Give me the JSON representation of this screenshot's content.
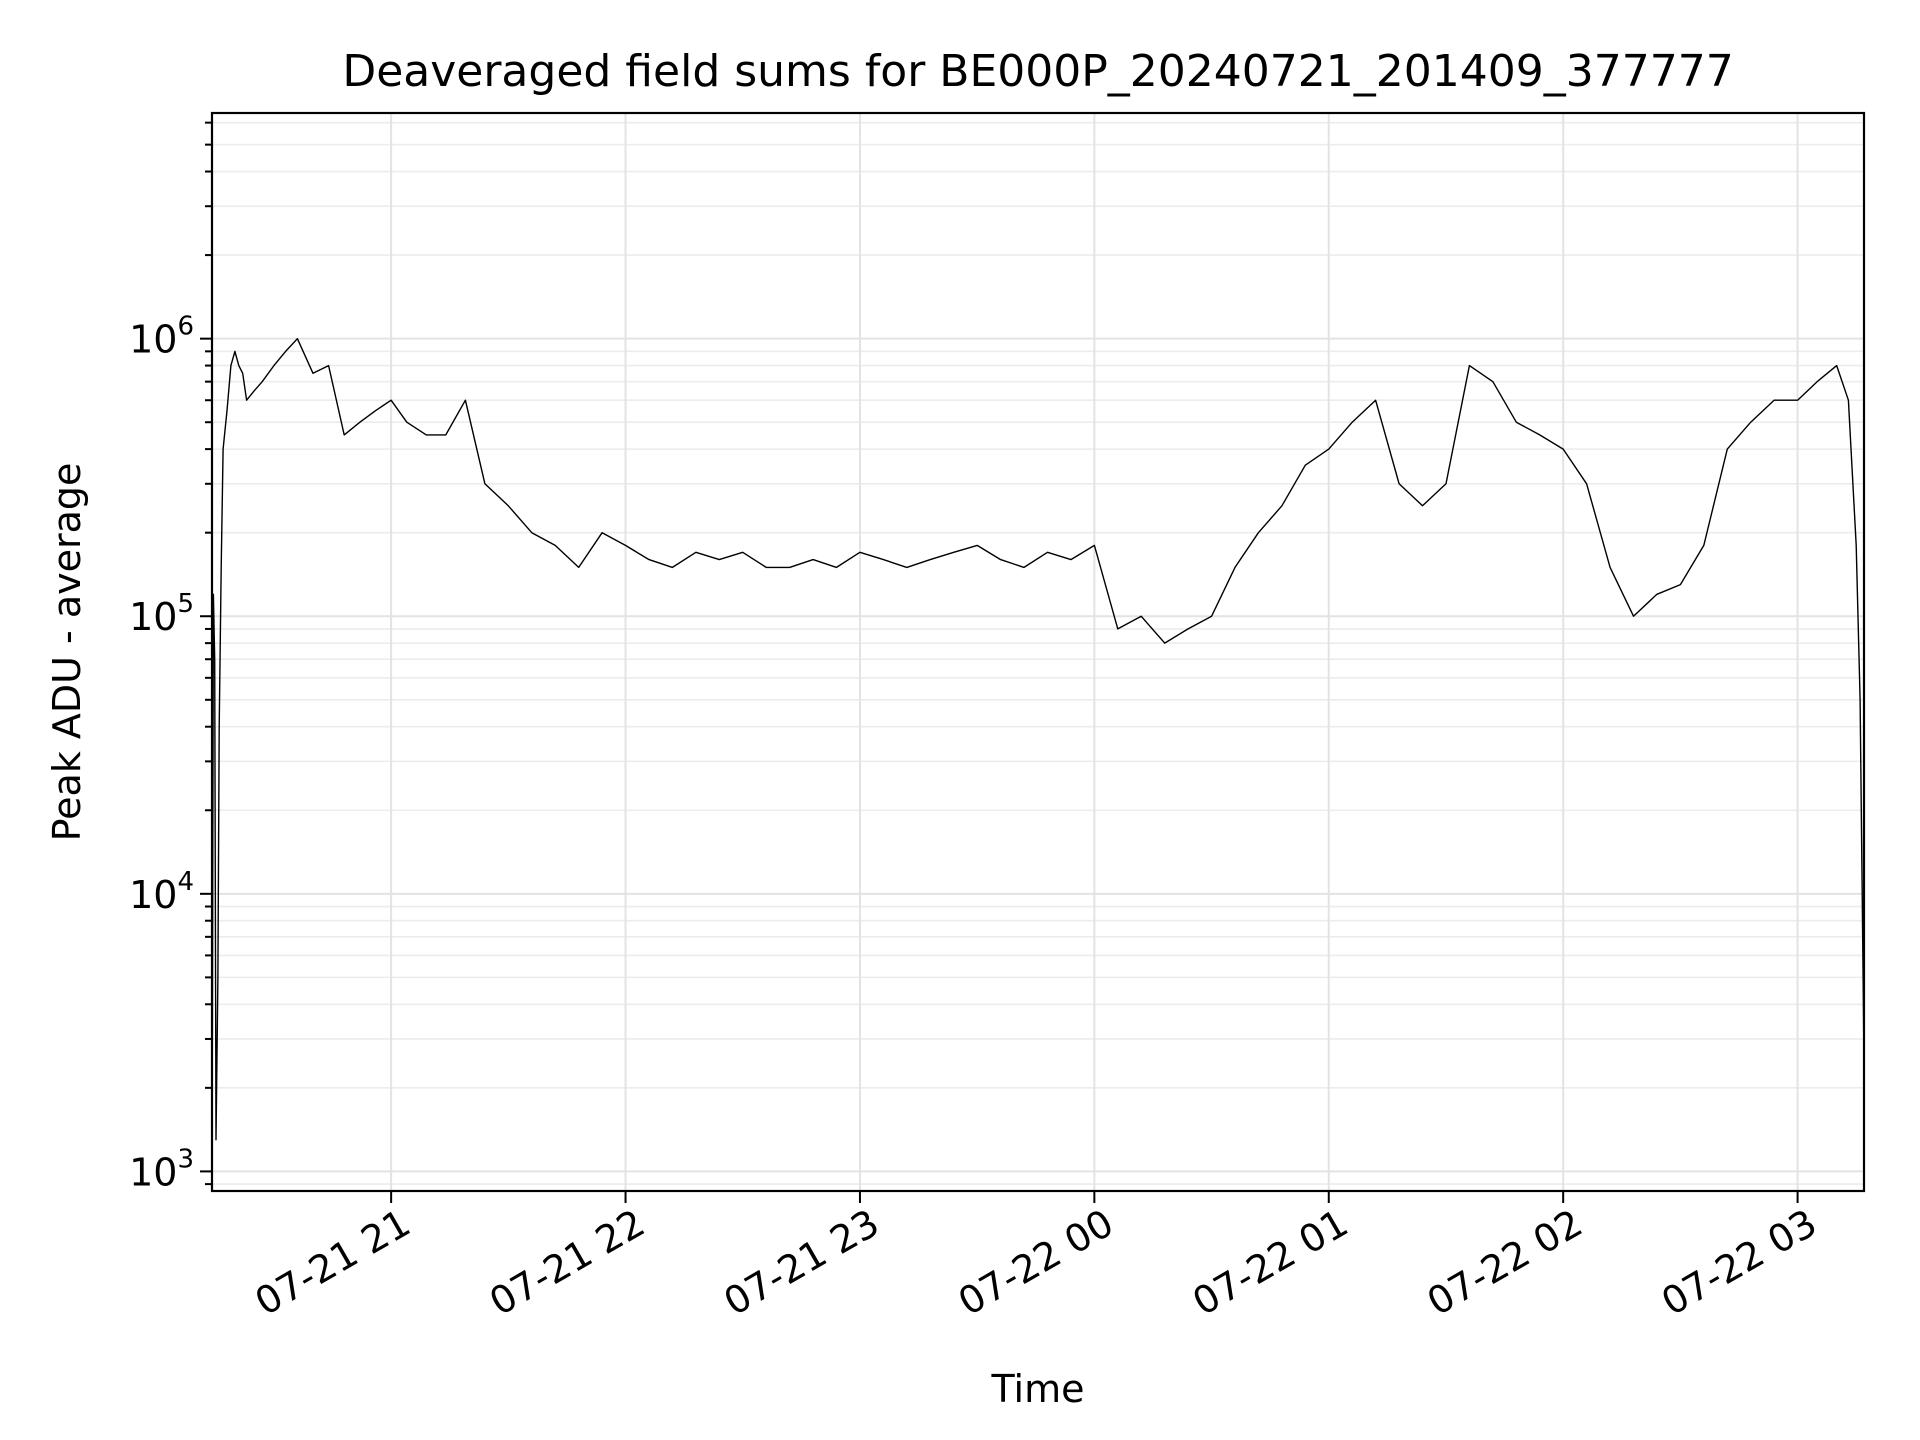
{
  "chart_data": {
    "type": "line",
    "title": "Deaveraged field sums for BE000P_20240721_201409_377777",
    "xlabel": "Time",
    "ylabel": "Peak ADU - average",
    "xscale": "time",
    "yscale": "log",
    "xlim": [
      "2024-07-21T20:14:09",
      "2024-07-22T03:17:00"
    ],
    "ylim": [
      850,
      6500000
    ],
    "grid": true,
    "legend": "none",
    "line_color": "#000000",
    "x_ticks": [
      {
        "value": "2024-07-21T21:00:00",
        "label": "07-21 21"
      },
      {
        "value": "2024-07-21T22:00:00",
        "label": "07-21 22"
      },
      {
        "value": "2024-07-21T23:00:00",
        "label": "07-21 23"
      },
      {
        "value": "2024-07-22T00:00:00",
        "label": "07-22 00"
      },
      {
        "value": "2024-07-22T01:00:00",
        "label": "07-22 01"
      },
      {
        "value": "2024-07-22T02:00:00",
        "label": "07-22 02"
      },
      {
        "value": "2024-07-22T03:00:00",
        "label": "07-22 03"
      }
    ],
    "y_ticks": [
      {
        "value": 1000,
        "base": "10",
        "exp": "3"
      },
      {
        "value": 10000,
        "base": "10",
        "exp": "4"
      },
      {
        "value": 100000,
        "base": "10",
        "exp": "5"
      },
      {
        "value": 1000000,
        "base": "10",
        "exp": "6"
      }
    ],
    "series": [
      {
        "x": [
          "2024-07-21T20:14:09",
          "2024-07-21T20:14:30",
          "2024-07-21T20:14:50",
          "2024-07-21T20:15:10",
          "2024-07-21T20:15:40",
          "2024-07-21T20:16:00",
          "2024-07-21T20:16:30",
          "2024-07-21T20:17:00",
          "2024-07-21T20:18:00",
          "2024-07-21T20:19:00",
          "2024-07-21T20:20:00",
          "2024-07-21T20:21:00",
          "2024-07-21T20:22:00",
          "2024-07-21T20:23:00",
          "2024-07-21T20:25:00",
          "2024-07-21T20:27:00",
          "2024-07-21T20:30:00",
          "2024-07-21T20:33:00",
          "2024-07-21T20:36:00",
          "2024-07-21T20:40:00",
          "2024-07-21T20:44:00",
          "2024-07-21T20:48:00",
          "2024-07-21T20:52:00",
          "2024-07-21T20:56:00",
          "2024-07-21T21:00:00",
          "2024-07-21T21:04:00",
          "2024-07-21T21:09:00",
          "2024-07-21T21:14:00",
          "2024-07-21T21:19:00",
          "2024-07-21T21:24:00",
          "2024-07-21T21:30:00",
          "2024-07-21T21:36:00",
          "2024-07-21T21:42:00",
          "2024-07-21T21:48:00",
          "2024-07-21T21:54:00",
          "2024-07-21T22:00:00",
          "2024-07-21T22:06:00",
          "2024-07-21T22:12:00",
          "2024-07-21T22:18:00",
          "2024-07-21T22:24:00",
          "2024-07-21T22:30:00",
          "2024-07-21T22:36:00",
          "2024-07-21T22:42:00",
          "2024-07-21T22:48:00",
          "2024-07-21T22:54:00",
          "2024-07-21T23:00:00",
          "2024-07-21T23:06:00",
          "2024-07-21T23:12:00",
          "2024-07-21T23:18:00",
          "2024-07-21T23:24:00",
          "2024-07-21T23:30:00",
          "2024-07-21T23:36:00",
          "2024-07-21T23:42:00",
          "2024-07-21T23:48:00",
          "2024-07-21T23:54:00",
          "2024-07-22T00:00:00",
          "2024-07-22T00:06:00",
          "2024-07-22T00:12:00",
          "2024-07-22T00:18:00",
          "2024-07-22T00:24:00",
          "2024-07-22T00:30:00",
          "2024-07-22T00:36:00",
          "2024-07-22T00:42:00",
          "2024-07-22T00:48:00",
          "2024-07-22T00:54:00",
          "2024-07-22T01:00:00",
          "2024-07-22T01:06:00",
          "2024-07-22T01:12:00",
          "2024-07-22T01:18:00",
          "2024-07-22T01:24:00",
          "2024-07-22T01:30:00",
          "2024-07-22T01:36:00",
          "2024-07-22T01:42:00",
          "2024-07-22T01:48:00",
          "2024-07-22T01:54:00",
          "2024-07-22T02:00:00",
          "2024-07-22T02:06:00",
          "2024-07-22T02:12:00",
          "2024-07-22T02:18:00",
          "2024-07-22T02:24:00",
          "2024-07-22T02:30:00",
          "2024-07-22T02:36:00",
          "2024-07-22T02:42:00",
          "2024-07-22T02:48:00",
          "2024-07-22T02:54:00",
          "2024-07-22T03:00:00",
          "2024-07-22T03:05:00",
          "2024-07-22T03:10:00",
          "2024-07-22T03:13:00",
          "2024-07-22T03:15:00",
          "2024-07-22T03:16:00",
          "2024-07-22T03:17:00"
        ],
        "y": [
          900,
          120000,
          70000,
          1300,
          5000,
          40000,
          150000,
          400000,
          550000,
          800000,
          900000,
          800000,
          750000,
          600000,
          650000,
          700000,
          800000,
          900000,
          1000000,
          750000,
          800000,
          450000,
          500000,
          550000,
          600000,
          500000,
          450000,
          450000,
          600000,
          300000,
          250000,
          200000,
          180000,
          150000,
          200000,
          180000,
          160000,
          150000,
          170000,
          160000,
          170000,
          150000,
          150000,
          160000,
          150000,
          170000,
          160000,
          150000,
          160000,
          170000,
          180000,
          160000,
          150000,
          170000,
          160000,
          180000,
          90000,
          100000,
          80000,
          90000,
          100000,
          150000,
          200000,
          250000,
          350000,
          400000,
          500000,
          600000,
          300000,
          250000,
          300000,
          800000,
          700000,
          500000,
          450000,
          400000,
          300000,
          150000,
          100000,
          120000,
          130000,
          180000,
          400000,
          500000,
          600000,
          600000,
          700000,
          800000,
          600000,
          180000,
          50000,
          2500
        ]
      }
    ]
  }
}
